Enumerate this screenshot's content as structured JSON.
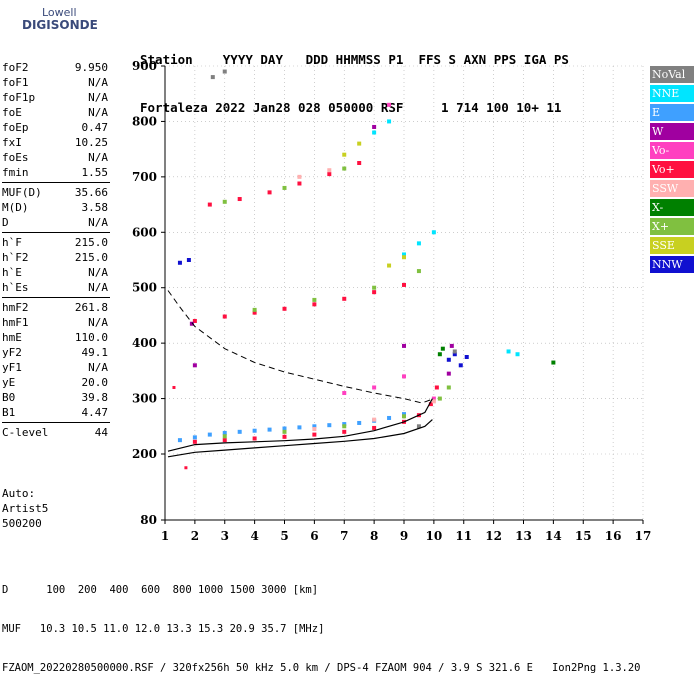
{
  "logo": {
    "line1": "Lowell",
    "line2": "DIGISONDE"
  },
  "header": {
    "line1": "Station    YYYY DAY   DDD HHMMSS P1  FFS S AXN PPS IGA PS",
    "line2": "Fortaleza 2022 Jan28 028 050000 RSF     1 714 100 10+ 11"
  },
  "params": [
    {
      "k": "foF2",
      "v": "9.950"
    },
    {
      "k": "foF1",
      "v": "N/A"
    },
    {
      "k": "foF1p",
      "v": "N/A"
    },
    {
      "k": "foE",
      "v": "N/A"
    },
    {
      "k": "foEp",
      "v": "0.47"
    },
    {
      "k": "fxI",
      "v": "10.25"
    },
    {
      "k": "foEs",
      "v": "N/A"
    },
    {
      "k": "fmin",
      "v": "1.55"
    },
    {
      "k": "MUF(D)",
      "v": "35.66"
    },
    {
      "k": "M(D)",
      "v": "3.58"
    },
    {
      "k": "D",
      "v": "N/A"
    },
    {
      "k": "h`F",
      "v": "215.0"
    },
    {
      "k": "h`F2",
      "v": "215.0"
    },
    {
      "k": "h`E",
      "v": "N/A"
    },
    {
      "k": "h`Es",
      "v": "N/A"
    },
    {
      "k": "hmF2",
      "v": "261.8"
    },
    {
      "k": "hmF1",
      "v": "N/A"
    },
    {
      "k": "hmE",
      "v": "110.0"
    },
    {
      "k": "yF2",
      "v": "49.1"
    },
    {
      "k": "yF1",
      "v": "N/A"
    },
    {
      "k": "yE",
      "v": "20.0"
    },
    {
      "k": "B0",
      "v": "39.8"
    },
    {
      "k": "B1",
      "v": "4.47"
    },
    {
      "k": "C-level",
      "v": "44"
    }
  ],
  "auto": {
    "line1": "Auto:",
    "line2": "Artist5",
    "line3": "500200"
  },
  "legend": [
    {
      "label": "NoVal",
      "color": "#808080"
    },
    {
      "label": "NNE",
      "color": "#00e5ff"
    },
    {
      "label": "E",
      "color": "#3fa0ff"
    },
    {
      "label": "W",
      "color": "#a000a0"
    },
    {
      "label": "Vo-",
      "color": "#ff40c0"
    },
    {
      "label": "Vo+",
      "color": "#ff1040"
    },
    {
      "label": "SSW",
      "color": "#ffb0b0"
    },
    {
      "label": "X-",
      "color": "#008000"
    },
    {
      "label": "X+",
      "color": "#80c040"
    },
    {
      "label": "SSE",
      "color": "#c8d020"
    },
    {
      "label": "NNW",
      "color": "#1010d0"
    }
  ],
  "footer": {
    "line1": "D      100  200  400  600  800 1000 1500 3000 [km]",
    "line2": "MUF   10.3 10.5 11.0 12.0 13.3 15.3 20.9 35.7 [MHz]",
    "line3": "FZAOM_20220280500000.RSF / 320fx256h 50 kHz 5.0 km / DPS-4 FZAOM 904 / 3.9 S 321.6 E   Ion2Png 1.3.20"
  },
  "chart_data": {
    "type": "scatter",
    "xlim": [
      1,
      17
    ],
    "ylim": [
      80,
      900
    ],
    "x_ticks": [
      1,
      2,
      3,
      4,
      5,
      6,
      7,
      8,
      9,
      10,
      11,
      12,
      13,
      14,
      15,
      16,
      17
    ],
    "y_ticks": [
      80,
      200,
      300,
      400,
      500,
      600,
      700,
      800,
      900
    ],
    "grid": true,
    "series": [
      {
        "name": "E",
        "color": "#3fa0ff",
        "points": [
          [
            1.5,
            225
          ],
          [
            2,
            230
          ],
          [
            2.5,
            235
          ],
          [
            3,
            238
          ],
          [
            3.5,
            240
          ],
          [
            4,
            242
          ],
          [
            4.5,
            244
          ],
          [
            5,
            246
          ],
          [
            5.5,
            248
          ],
          [
            6,
            250
          ],
          [
            6.5,
            252
          ],
          [
            7,
            254
          ],
          [
            7.5,
            256
          ],
          [
            8,
            260
          ],
          [
            8.5,
            265
          ],
          [
            9,
            272
          ]
        ]
      },
      {
        "name": "Vo+",
        "color": "#ff1040",
        "points": [
          [
            2,
            222
          ],
          [
            3,
            225
          ],
          [
            4,
            228
          ],
          [
            5,
            231
          ],
          [
            6,
            235
          ],
          [
            7,
            240
          ],
          [
            8,
            247
          ],
          [
            9,
            258
          ],
          [
            9.5,
            270
          ],
          [
            9.9,
            290
          ],
          [
            10.1,
            320
          ],
          [
            2,
            440
          ],
          [
            3,
            448
          ],
          [
            4,
            455
          ],
          [
            5,
            462
          ],
          [
            6,
            470
          ],
          [
            7,
            480
          ],
          [
            8,
            492
          ],
          [
            9,
            505
          ],
          [
            2.5,
            650
          ],
          [
            3.5,
            660
          ],
          [
            4.5,
            672
          ],
          [
            5.5,
            688
          ],
          [
            6.5,
            705
          ],
          [
            7.5,
            725
          ]
        ]
      },
      {
        "name": "X+",
        "color": "#80c040",
        "points": [
          [
            3,
            232
          ],
          [
            5,
            240
          ],
          [
            7,
            250
          ],
          [
            9,
            268
          ],
          [
            10.2,
            300
          ],
          [
            10.5,
            320
          ],
          [
            4,
            460
          ],
          [
            6,
            478
          ],
          [
            8,
            500
          ],
          [
            9.5,
            530
          ],
          [
            3,
            655
          ],
          [
            5,
            680
          ],
          [
            7,
            715
          ]
        ]
      },
      {
        "name": "NNW",
        "color": "#1010d0",
        "points": [
          [
            10.5,
            370
          ],
          [
            10.7,
            380
          ],
          [
            10.9,
            360
          ],
          [
            11.1,
            375
          ],
          [
            1.5,
            545
          ],
          [
            1.8,
            550
          ]
        ]
      },
      {
        "name": "NNE",
        "color": "#00e5ff",
        "points": [
          [
            9,
            560
          ],
          [
            9.5,
            580
          ],
          [
            10,
            600
          ],
          [
            8,
            780
          ],
          [
            8.5,
            800
          ],
          [
            12.5,
            385
          ],
          [
            12.8,
            380
          ]
        ]
      },
      {
        "name": "SSE",
        "color": "#c8d020",
        "points": [
          [
            8.5,
            540
          ],
          [
            9,
            555
          ],
          [
            7,
            740
          ],
          [
            7.5,
            760
          ]
        ]
      },
      {
        "name": "W",
        "color": "#a000a0",
        "points": [
          [
            10.5,
            345
          ],
          [
            10.6,
            395
          ],
          [
            9,
            395
          ],
          [
            8,
            790
          ],
          [
            1.9,
            435
          ],
          [
            2,
            360
          ]
        ]
      },
      {
        "name": "Vo-",
        "color": "#ff40c0",
        "points": [
          [
            7,
            310
          ],
          [
            8,
            320
          ],
          [
            9,
            340
          ],
          [
            10,
            300
          ],
          [
            8.5,
            830
          ]
        ]
      },
      {
        "name": "SSW",
        "color": "#ffb0b0",
        "points": [
          [
            6,
            245
          ],
          [
            8,
            262
          ],
          [
            10,
            295
          ],
          [
            5.5,
            700
          ],
          [
            6.5,
            712
          ]
        ]
      },
      {
        "name": "X-",
        "color": "#008000",
        "points": [
          [
            10.2,
            380
          ],
          [
            10.3,
            390
          ],
          [
            14,
            365
          ]
        ]
      },
      {
        "name": "NoVal",
        "color": "#808080",
        "points": [
          [
            9.5,
            250
          ],
          [
            10.7,
            385
          ],
          [
            2.6,
            880
          ],
          [
            3,
            890
          ]
        ]
      }
    ],
    "profile_curve": [
      [
        1.1,
        195
      ],
      [
        2,
        203
      ],
      [
        3,
        207
      ],
      [
        4,
        211
      ],
      [
        5,
        215
      ],
      [
        6,
        219
      ],
      [
        7,
        223
      ],
      [
        8,
        228
      ],
      [
        9,
        237
      ],
      [
        9.7,
        250
      ],
      [
        9.95,
        262
      ]
    ],
    "trace_curve": [
      [
        1.1,
        205
      ],
      [
        2,
        217
      ],
      [
        3,
        220
      ],
      [
        4,
        222
      ],
      [
        5,
        224
      ],
      [
        6,
        227
      ],
      [
        7,
        232
      ],
      [
        8,
        242
      ],
      [
        9,
        258
      ],
      [
        9.7,
        275
      ],
      [
        9.95,
        300
      ]
    ],
    "dashed_curve": [
      [
        1.1,
        495
      ],
      [
        1.5,
        465
      ],
      [
        2,
        430
      ],
      [
        3,
        390
      ],
      [
        4,
        365
      ],
      [
        5,
        348
      ],
      [
        6,
        335
      ],
      [
        7,
        322
      ],
      [
        8,
        310
      ],
      [
        9,
        300
      ],
      [
        9.6,
        292
      ],
      [
        10,
        300
      ]
    ],
    "anchor_points": [
      [
        1.3,
        320
      ],
      [
        1.7,
        175
      ]
    ]
  }
}
